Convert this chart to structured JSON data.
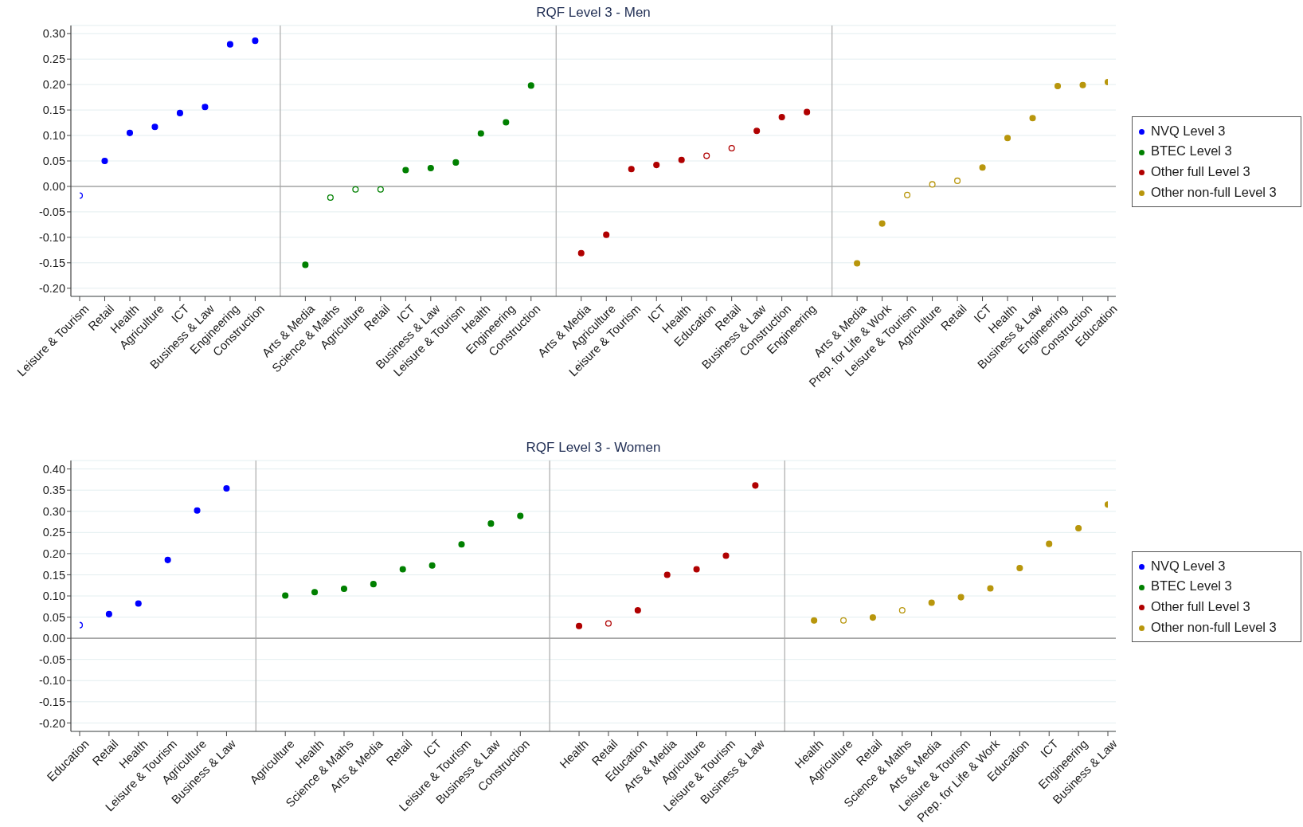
{
  "chart_data": [
    {
      "type": "scatter",
      "title": "RQF Level 3 - Men",
      "categories": [
        "Leisure & Tourism",
        "Retail",
        "Health",
        "Agriculture",
        "ICT",
        "Business & Law",
        "Engineering",
        "Construction",
        "Arts & Media",
        "Science & Maths",
        "Agriculture",
        "Retail",
        "ICT",
        "Business & Law",
        "Leisure & Tourism",
        "Health",
        "Engineering",
        "Construction",
        "Arts & Media",
        "Agriculture",
        "Leisure & Tourism",
        "ICT",
        "Health",
        "Education",
        "Retail",
        "Business & Law",
        "Construction",
        "Engineering",
        "Arts & Media",
        "Prep. for Life & Work",
        "Leisure & Tourism",
        "Agriculture",
        "Retail",
        "ICT",
        "Health",
        "Business & Law",
        "Engineering",
        "Construction",
        "Education"
      ],
      "series": [
        {
          "name": "NVQ Level 3",
          "color": "#0000ff",
          "values": [
            -0.018,
            0.05,
            0.105,
            0.117,
            0.144,
            0.156,
            0.279,
            0.286,
            null,
            null,
            null,
            null,
            null,
            null,
            null,
            null,
            null,
            null,
            null,
            null,
            null,
            null,
            null,
            null,
            null,
            null,
            null,
            null,
            null,
            null,
            null,
            null,
            null,
            null,
            null,
            null,
            null,
            null,
            null
          ],
          "colors": [
            "#ffffff",
            "#0000ff",
            "#0000ff",
            "#0000ff",
            "#0000ff",
            "#0000ff",
            "#0000ff",
            "#0000ff",
            null,
            null,
            null,
            null,
            null,
            null,
            null,
            null,
            null,
            null,
            null,
            null,
            null,
            null,
            null,
            null,
            null,
            null,
            null,
            null,
            null,
            null,
            null,
            null,
            null,
            null,
            null,
            null,
            null,
            null,
            null
          ]
        },
        {
          "name": "BTEC Level 3",
          "color": "#008000",
          "values": [
            null,
            null,
            null,
            null,
            null,
            null,
            null,
            null,
            -0.154,
            -0.022,
            -0.006,
            -0.006,
            0.032,
            0.036,
            0.047,
            0.104,
            0.126,
            0.198,
            null,
            null,
            null,
            null,
            null,
            null,
            null,
            null,
            null,
            null,
            null,
            null,
            null,
            null,
            null,
            null,
            null,
            null,
            null,
            null,
            null
          ],
          "colors": [
            null,
            null,
            null,
            null,
            null,
            null,
            null,
            null,
            "#008000",
            "#ffffff",
            "#ffffff",
            "#ffffff",
            "#008000",
            "#008000",
            "#008000",
            "#008000",
            "#008000",
            "#008000",
            null,
            null,
            null,
            null,
            null,
            null,
            null,
            null,
            null,
            null,
            null,
            null,
            null,
            null,
            null,
            null,
            null,
            null,
            null,
            null,
            null
          ]
        },
        {
          "name": "Other full Level 3",
          "color": "#b00000",
          "values": [
            null,
            null,
            null,
            null,
            null,
            null,
            null,
            null,
            null,
            null,
            null,
            null,
            null,
            null,
            null,
            null,
            null,
            null,
            -0.131,
            -0.095,
            0.034,
            0.042,
            0.052,
            0.06,
            0.075,
            0.109,
            0.136,
            0.146,
            null,
            null,
            null,
            null,
            null,
            null,
            null,
            null,
            null,
            null,
            null
          ],
          "colors": [
            null,
            null,
            null,
            null,
            null,
            null,
            null,
            null,
            null,
            null,
            null,
            null,
            null,
            null,
            null,
            null,
            null,
            null,
            "#b00000",
            "#b00000",
            "#b00000",
            "#b00000",
            "#b00000",
            "#ffffff",
            "#ffffff",
            "#b00000",
            "#b00000",
            "#b00000",
            null,
            null,
            null,
            null,
            null,
            null,
            null,
            null,
            null,
            null,
            null
          ]
        },
        {
          "name": "Other non-full Level 3",
          "color": "#b8960c",
          "values": [
            null,
            null,
            null,
            null,
            null,
            null,
            null,
            null,
            null,
            null,
            null,
            null,
            null,
            null,
            null,
            null,
            null,
            null,
            null,
            null,
            null,
            null,
            null,
            null,
            null,
            null,
            null,
            null,
            -0.151,
            -0.073,
            -0.017,
            0.004,
            0.011,
            0.037,
            0.095,
            0.134,
            0.197,
            0.199,
            0.205
          ],
          "colors": [
            null,
            null,
            null,
            null,
            null,
            null,
            null,
            null,
            null,
            null,
            null,
            null,
            null,
            null,
            null,
            null,
            null,
            null,
            null,
            null,
            null,
            null,
            null,
            null,
            null,
            null,
            null,
            null,
            "#b8960c",
            "#b8960c",
            "#ffffff",
            "#ffffff",
            "#ffffff",
            "#b8960c",
            "#b8960c",
            "#b8960c",
            "#b8960c",
            "#b8960c",
            "#b8960c"
          ]
        }
      ],
      "ylim": [
        -0.216,
        0.316
      ],
      "yticks": [
        {
          "value": 0.3,
          "label": "0.30"
        },
        {
          "value": 0.25,
          "label": "0.25"
        },
        {
          "value": 0.2,
          "label": "0.20"
        },
        {
          "value": 0.15,
          "label": "0.15"
        },
        {
          "value": 0.1,
          "label": "0.10"
        },
        {
          "value": 0.05,
          "label": "0.05"
        },
        {
          "value": 0,
          "label": "0.00"
        },
        {
          "value": -0.05,
          "label": "-0.05"
        },
        {
          "value": -0.1,
          "label": "-0.10"
        },
        {
          "value": -0.15,
          "label": "-0.15"
        },
        {
          "value": -0.2,
          "label": "-0.20"
        }
      ],
      "grid": "y",
      "legend": "right",
      "marker": "circle",
      "ref_lines": [
        {
          "axis": "y",
          "value": 0,
          "color": "#a6a6a6"
        }
      ]
    },
    {
      "type": "scatter",
      "title": "RQF Level 3 - Women",
      "categories": [
        "Education",
        "Retail",
        "Health",
        "Leisure & Tourism",
        "Agriculture",
        "Business & Law",
        "Agriculture",
        "Health",
        "Science & Maths",
        "Arts & Media",
        "Retail",
        "ICT",
        "Leisure & Tourism",
        "Business & Law",
        "Construction",
        "Health",
        "Retail",
        "Education",
        "Arts & Media",
        "Agriculture",
        "Leisure & Tourism",
        "Business & Law",
        "Health",
        "Agriculture",
        "Retail",
        "Science & Maths",
        "Arts & Media",
        "Leisure & Tourism",
        "Prep. for Life & Work",
        "Education",
        "ICT",
        "Engineering",
        "Business & Law"
      ],
      "series": [
        {
          "name": "NVQ Level 3",
          "color": "#0000ff",
          "values": [
            0.031,
            0.057,
            0.082,
            0.185,
            0.302,
            0.354,
            null,
            null,
            null,
            null,
            null,
            null,
            null,
            null,
            null,
            null,
            null,
            null,
            null,
            null,
            null,
            null,
            null,
            null,
            null,
            null,
            null,
            null,
            null,
            null,
            null,
            null,
            null
          ],
          "colors": [
            "#ffffff",
            "#0000ff",
            "#0000ff",
            "#0000ff",
            "#0000ff",
            "#0000ff",
            null,
            null,
            null,
            null,
            null,
            null,
            null,
            null,
            null,
            null,
            null,
            null,
            null,
            null,
            null,
            null,
            null,
            null,
            null,
            null,
            null,
            null,
            null,
            null,
            null,
            null,
            null
          ]
        },
        {
          "name": "BTEC Level 3",
          "color": "#008000",
          "values": [
            null,
            null,
            null,
            null,
            null,
            null,
            0.101,
            0.109,
            0.117,
            0.128,
            0.163,
            0.172,
            0.222,
            0.271,
            0.289,
            null,
            null,
            null,
            null,
            null,
            null,
            null,
            null,
            null,
            null,
            null,
            null,
            null,
            null,
            null,
            null,
            null,
            null
          ],
          "colors": [
            null,
            null,
            null,
            null,
            null,
            null,
            "#008000",
            "#008000",
            "#008000",
            "#008000",
            "#008000",
            "#008000",
            "#008000",
            "#008000",
            "#008000",
            null,
            null,
            null,
            null,
            null,
            null,
            null,
            null,
            null,
            null,
            null,
            null,
            null,
            null,
            null,
            null,
            null,
            null
          ]
        },
        {
          "name": "Other full Level 3",
          "color": "#b00000",
          "values": [
            null,
            null,
            null,
            null,
            null,
            null,
            null,
            null,
            null,
            null,
            null,
            null,
            null,
            null,
            null,
            0.029,
            0.035,
            0.066,
            0.15,
            0.163,
            0.195,
            0.361,
            null,
            null,
            null,
            null,
            null,
            null,
            null,
            null,
            null,
            null,
            null
          ],
          "colors": [
            null,
            null,
            null,
            null,
            null,
            null,
            null,
            null,
            null,
            null,
            null,
            null,
            null,
            null,
            null,
            "#b00000",
            "#ffffff",
            "#b00000",
            "#b00000",
            "#b00000",
            "#b00000",
            "#b00000",
            null,
            null,
            null,
            null,
            null,
            null,
            null,
            null,
            null,
            null,
            null
          ]
        },
        {
          "name": "Other non-full Level 3",
          "color": "#b8960c",
          "values": [
            null,
            null,
            null,
            null,
            null,
            null,
            null,
            null,
            null,
            null,
            null,
            null,
            null,
            null,
            null,
            null,
            null,
            null,
            null,
            null,
            null,
            null,
            0.042,
            0.042,
            0.049,
            0.066,
            0.084,
            0.097,
            0.118,
            0.166,
            0.223,
            0.26,
            0.316
          ],
          "colors": [
            null,
            null,
            null,
            null,
            null,
            null,
            null,
            null,
            null,
            null,
            null,
            null,
            null,
            null,
            null,
            null,
            null,
            null,
            null,
            null,
            null,
            null,
            "#b8960c",
            "#ffffff",
            "#b8960c",
            "#ffffff",
            "#b8960c",
            "#b8960c",
            "#b8960c",
            "#b8960c",
            "#b8960c",
            "#b8960c",
            "#b8960c"
          ]
        }
      ],
      "ylim": [
        -0.22,
        0.42
      ],
      "yticks": [
        {
          "value": 0.4,
          "label": "0.40"
        },
        {
          "value": 0.35,
          "label": "0.35"
        },
        {
          "value": 0.3,
          "label": "0.30"
        },
        {
          "value": 0.25,
          "label": "0.25"
        },
        {
          "value": 0.2,
          "label": "0.20"
        },
        {
          "value": 0.15,
          "label": "0.15"
        },
        {
          "value": 0.1,
          "label": "0.10"
        },
        {
          "value": 0.05,
          "label": "0.05"
        },
        {
          "value": 0,
          "label": "0.00"
        },
        {
          "value": -0.05,
          "label": "-0.05"
        },
        {
          "value": -0.1,
          "label": "-0.10"
        },
        {
          "value": -0.15,
          "label": "-0.15"
        },
        {
          "value": -0.2,
          "label": "-0.20"
        }
      ],
      "grid": "y",
      "legend": "right",
      "marker": "circle",
      "ref_lines": [
        {
          "axis": "y",
          "value": 0,
          "color": "#a6a6a6"
        }
      ]
    }
  ]
}
